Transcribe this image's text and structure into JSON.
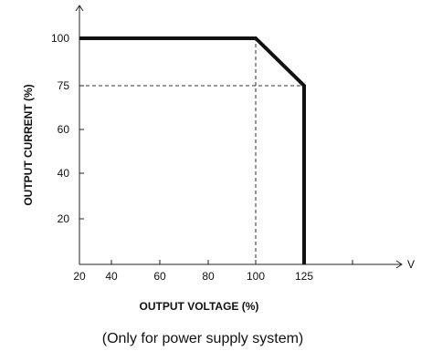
{
  "chart_data": {
    "type": "line",
    "xlabel": "OUTPUT VOLTAGE (%)",
    "ylabel": "OUTPUT CURRENT (%)",
    "x_unit": "V",
    "caption": "(Only for power supply system)",
    "x_ticks": [
      20,
      40,
      60,
      80,
      100,
      125
    ],
    "y_ticks": [
      20,
      40,
      60,
      75,
      100
    ],
    "series": [
      {
        "x": [
          20,
          100,
          125,
          125
        ],
        "y": [
          100,
          100,
          75,
          0
        ]
      }
    ],
    "guides": [
      {
        "x": [
          100,
          100
        ],
        "y": [
          0,
          100
        ]
      },
      {
        "x": [
          20,
          125
        ],
        "y": [
          75,
          75
        ]
      }
    ],
    "colors": {
      "line": "#111111",
      "axis": "#222222"
    }
  }
}
